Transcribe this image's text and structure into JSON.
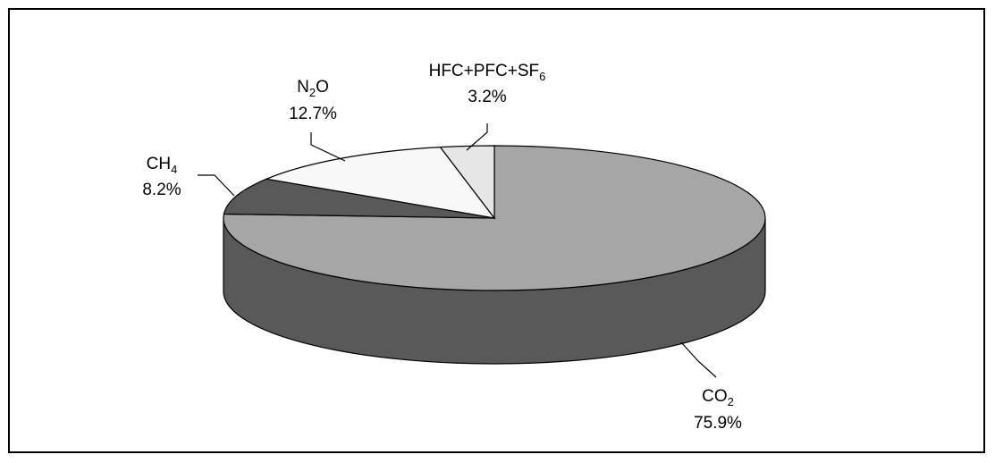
{
  "chart_data": {
    "type": "pie",
    "style": "3d",
    "title": "",
    "legend": "none",
    "slices": [
      {
        "label": "CO₂",
        "value": 75.9,
        "value_label": "75.9%",
        "color": "#a6a6a6"
      },
      {
        "label": "CH₄",
        "value": 8.2,
        "value_label": "8.2%",
        "color": "#595959"
      },
      {
        "label": "N₂O",
        "value": 12.7,
        "value_label": "12.7%",
        "color": "#f8f8f8"
      },
      {
        "label": "HFC+PFC+SF₆",
        "value": 3.2,
        "value_label": "3.2%",
        "color": "#e6e6e6"
      }
    ],
    "side_color": "#595959"
  }
}
